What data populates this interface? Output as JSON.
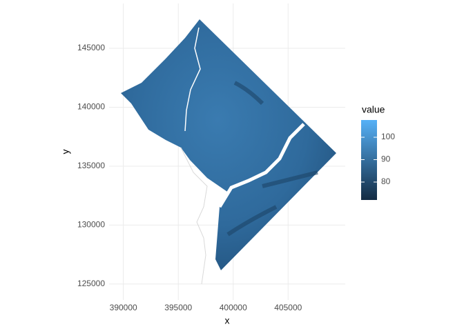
{
  "chart_data": {
    "type": "raster",
    "x_label": "x",
    "y_label": "y",
    "xlim": [
      388700,
      410200
    ],
    "xticks": [
      390000,
      395000,
      400000,
      405000
    ],
    "ylim": [
      123650,
      148800
    ],
    "yticks": [
      125000,
      130000,
      135000,
      140000,
      145000
    ],
    "grid": true,
    "legend": {
      "title": "value",
      "position": "right",
      "low_color": "#132B43",
      "high_color": "#56B1F7",
      "limits": [
        72,
        107.7
      ],
      "ticks": [
        80,
        90,
        100
      ]
    }
  }
}
